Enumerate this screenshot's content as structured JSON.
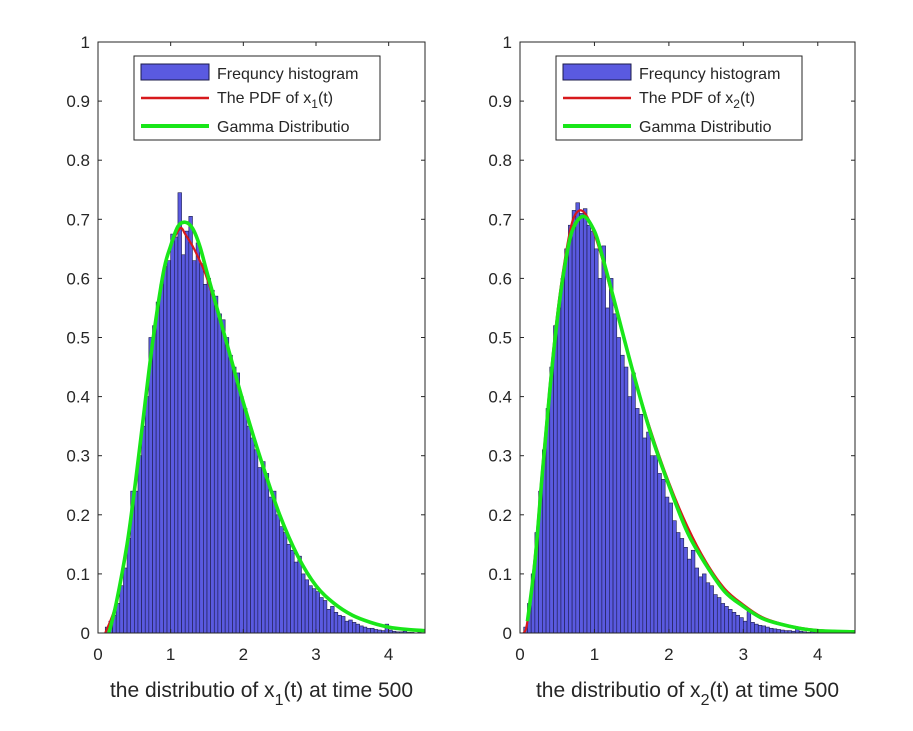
{
  "colors": {
    "bar_fill": "#5a5ae0",
    "bar_edge": "#1b1b4a",
    "pdf": "#d7191c",
    "gamma": "#19e619",
    "axis": "#262626"
  },
  "chart_data": [
    {
      "type": "bar",
      "xlabel_parts": [
        "the distributio of x",
        "1",
        "(t) at time 500"
      ],
      "ylabel": "",
      "xlim": [
        0,
        4.5
      ],
      "ylim": [
        0,
        1
      ],
      "xticks": [
        "0",
        "1",
        "2",
        "3",
        "4"
      ],
      "yticks": [
        "0",
        "0.1",
        "0.2",
        "0.3",
        "0.4",
        "0.5",
        "0.6",
        "0.7",
        "0.8",
        "0.9",
        "1"
      ],
      "legend": {
        "placement": "top",
        "entries": [
          "Frequncy histogram",
          "The PDF of x",
          "Gamma Distributio"
        ],
        "pdf_subscript": "1",
        "pdf_suffix": "(t)"
      },
      "histogram": {
        "bin_start": 0.1,
        "bin_width": 0.05,
        "values": [
          0.01,
          0.02,
          0.03,
          0.05,
          0.08,
          0.11,
          0.16,
          0.24,
          0.24,
          0.3,
          0.35,
          0.4,
          0.5,
          0.52,
          0.56,
          0.59,
          0.62,
          0.63,
          0.675,
          0.67,
          0.745,
          0.64,
          0.68,
          0.705,
          0.63,
          0.66,
          0.625,
          0.59,
          0.6,
          0.58,
          0.57,
          0.54,
          0.53,
          0.5,
          0.47,
          0.45,
          0.44,
          0.4,
          0.38,
          0.35,
          0.33,
          0.31,
          0.28,
          0.29,
          0.27,
          0.23,
          0.24,
          0.2,
          0.18,
          0.17,
          0.15,
          0.14,
          0.12,
          0.13,
          0.1,
          0.09,
          0.08,
          0.075,
          0.07,
          0.06,
          0.055,
          0.04,
          0.045,
          0.035,
          0.03,
          0.028,
          0.02,
          0.022,
          0.018,
          0.015,
          0.012,
          0.01,
          0.008,
          0.008,
          0.006,
          0.005,
          0.004,
          0.015,
          0.005,
          0.003,
          0.002,
          0.002,
          0.003,
          0.001,
          0.001,
          0,
          0.001,
          0
        ]
      },
      "series": [
        {
          "name": "The PDF of x1(t)",
          "x": [
            0.1,
            0.25,
            0.4,
            0.5,
            0.6,
            0.75,
            0.9,
            1.0,
            1.1,
            1.15,
            1.2,
            1.3,
            1.4,
            1.5,
            1.75,
            2.0,
            2.25,
            2.5,
            2.75,
            3.0,
            3.25,
            3.5,
            3.75,
            4.0,
            4.25,
            4.5
          ],
          "y": [
            0,
            0.05,
            0.15,
            0.24,
            0.34,
            0.49,
            0.61,
            0.655,
            0.68,
            0.685,
            0.675,
            0.655,
            0.63,
            0.6,
            0.5,
            0.39,
            0.29,
            0.2,
            0.13,
            0.08,
            0.05,
            0.03,
            0.018,
            0.01,
            0.006,
            0.004
          ]
        },
        {
          "name": "Gamma Distributio",
          "x": [
            0.15,
            0.25,
            0.4,
            0.5,
            0.6,
            0.75,
            0.9,
            1.0,
            1.1,
            1.2,
            1.3,
            1.4,
            1.5,
            1.75,
            2.0,
            2.25,
            2.5,
            2.75,
            3.0,
            3.25,
            3.5,
            3.75,
            4.0,
            4.25,
            4.5
          ],
          "y": [
            0,
            0.05,
            0.15,
            0.24,
            0.34,
            0.49,
            0.61,
            0.655,
            0.688,
            0.695,
            0.685,
            0.655,
            0.61,
            0.5,
            0.39,
            0.29,
            0.2,
            0.13,
            0.08,
            0.05,
            0.03,
            0.018,
            0.01,
            0.006,
            0.004
          ]
        }
      ]
    },
    {
      "type": "bar",
      "xlabel_parts": [
        "the distributio of x",
        "2",
        "(t) at time 500"
      ],
      "ylabel": "",
      "xlim": [
        0,
        4.5
      ],
      "ylim": [
        0,
        1
      ],
      "xticks": [
        "0",
        "1",
        "2",
        "3",
        "4"
      ],
      "yticks": [
        "0",
        "0.1",
        "0.2",
        "0.3",
        "0.4",
        "0.5",
        "0.6",
        "0.7",
        "0.8",
        "0.9",
        "1"
      ],
      "legend": {
        "placement": "top",
        "entries": [
          "Frequncy histogram",
          "The PDF of x",
          "Gamma Distributio"
        ],
        "pdf_subscript": "2",
        "pdf_suffix": "(t)"
      },
      "histogram": {
        "bin_start": 0.05,
        "bin_width": 0.05,
        "values": [
          0.01,
          0.05,
          0.1,
          0.17,
          0.24,
          0.31,
          0.38,
          0.45,
          0.52,
          0.55,
          0.6,
          0.65,
          0.69,
          0.715,
          0.728,
          0.71,
          0.718,
          0.69,
          0.68,
          0.65,
          0.6,
          0.655,
          0.55,
          0.6,
          0.54,
          0.5,
          0.47,
          0.45,
          0.4,
          0.44,
          0.38,
          0.37,
          0.33,
          0.34,
          0.3,
          0.3,
          0.27,
          0.26,
          0.23,
          0.22,
          0.19,
          0.17,
          0.16,
          0.145,
          0.125,
          0.14,
          0.11,
          0.095,
          0.1,
          0.085,
          0.08,
          0.065,
          0.06,
          0.05,
          0.045,
          0.04,
          0.035,
          0.03,
          0.026,
          0.02,
          0.036,
          0.018,
          0.015,
          0.013,
          0.012,
          0.01,
          0.008,
          0.007,
          0.006,
          0.005,
          0.004,
          0.004,
          0.003,
          0.008,
          0.003,
          0.002,
          0.001,
          0.002,
          0.001,
          0.001,
          0.001,
          0
        ]
      },
      "series": [
        {
          "name": "The PDF of x2(t)",
          "x": [
            0.05,
            0.1,
            0.2,
            0.3,
            0.4,
            0.5,
            0.6,
            0.7,
            0.8,
            0.9,
            1.0,
            1.1,
            1.25,
            1.5,
            1.75,
            2.0,
            2.25,
            2.5,
            2.75,
            3.0,
            3.25,
            3.5,
            3.75,
            4.0,
            4.5
          ],
          "y": [
            0,
            0.02,
            0.13,
            0.28,
            0.42,
            0.54,
            0.63,
            0.695,
            0.715,
            0.705,
            0.675,
            0.635,
            0.565,
            0.45,
            0.345,
            0.255,
            0.18,
            0.12,
            0.075,
            0.048,
            0.027,
            0.016,
            0.009,
            0.005,
            0.002
          ]
        },
        {
          "name": "Gamma Distributio",
          "x": [
            0.1,
            0.2,
            0.3,
            0.4,
            0.5,
            0.6,
            0.7,
            0.85,
            1.0,
            1.1,
            1.25,
            1.5,
            1.75,
            2.0,
            2.25,
            2.5,
            2.75,
            3.0,
            3.25,
            3.5,
            3.75,
            4.0,
            4.5
          ],
          "y": [
            0.02,
            0.12,
            0.27,
            0.41,
            0.53,
            0.62,
            0.68,
            0.705,
            0.68,
            0.64,
            0.57,
            0.45,
            0.34,
            0.25,
            0.17,
            0.115,
            0.07,
            0.045,
            0.025,
            0.015,
            0.008,
            0.004,
            0.002
          ]
        }
      ]
    }
  ]
}
